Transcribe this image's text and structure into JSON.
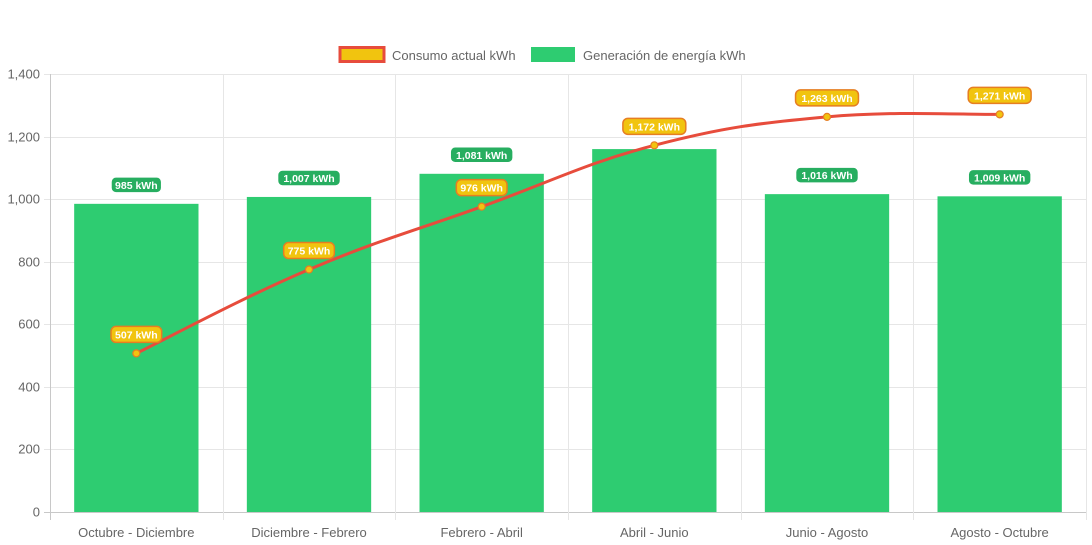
{
  "chart_data": {
    "type": "bar",
    "categories": [
      "Octubre - Diciembre",
      "Diciembre - Febrero",
      "Febrero - Abril",
      "Abril - Junio",
      "Junio - Agosto",
      "Agosto - Octubre"
    ],
    "series": [
      {
        "name": "Consumo actual kWh",
        "type": "line",
        "values": [
          507,
          775,
          976,
          1172,
          1263,
          1271
        ],
        "labels": [
          "507 kWh",
          "775 kWh",
          "976 kWh",
          "1,172 kWh",
          "1,263 kWh",
          "1,271 kWh"
        ],
        "color": "#e74c3c",
        "fill_color": "#f1c40f"
      },
      {
        "name": "Generación de energía kWh",
        "type": "bar",
        "values": [
          985,
          1007,
          1081,
          1160,
          1016,
          1009
        ],
        "labels": [
          "985 kWh",
          "1,007 kWh",
          "1,081 kWh",
          "",
          "1,016 kWh",
          "1,009 kWh"
        ],
        "color": "#2ecc71"
      }
    ],
    "y_ticks": [
      "0",
      "200",
      "400",
      "600",
      "800",
      "1,000",
      "1,200",
      "1,400"
    ],
    "ylim": [
      0,
      1400
    ],
    "grid": true,
    "legend_position": "top-center",
    "title": "",
    "xlabel": "",
    "ylabel": ""
  }
}
